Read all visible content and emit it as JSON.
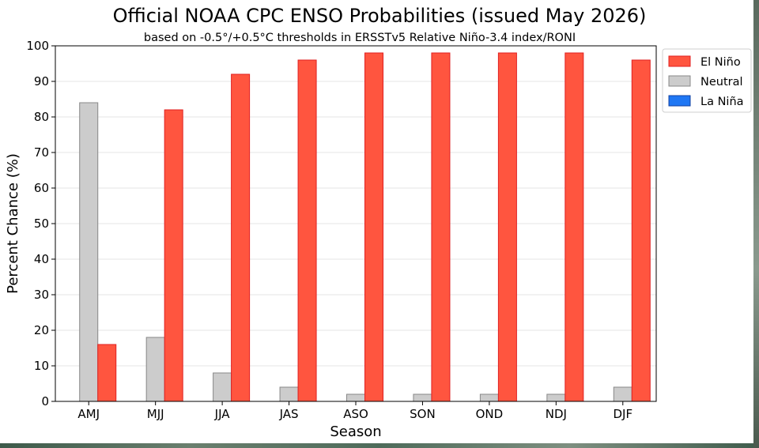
{
  "chart_data": {
    "type": "bar",
    "title": "Official NOAA CPC ENSO Probabilities (issued May 2026)",
    "subtitle": "based on -0.5°/+0.5°C thresholds in ERSSTv5 Relative Niño-3.4 index/RONI",
    "xlabel": "Season",
    "ylabel": "Percent Chance (%)",
    "ylim": [
      0,
      100
    ],
    "yticks": [
      0,
      10,
      20,
      30,
      40,
      50,
      60,
      70,
      80,
      90,
      100
    ],
    "grid": true,
    "legend_position": "outside-right",
    "categories": [
      "AMJ",
      "MJJ",
      "JJA",
      "JAS",
      "ASO",
      "SON",
      "OND",
      "NDJ",
      "DJF"
    ],
    "series": [
      {
        "name": "La Niña",
        "color": "#1f77f4",
        "edge": "#1040a0",
        "values": [
          0,
          0,
          0,
          0,
          0,
          0,
          0,
          0,
          0
        ]
      },
      {
        "name": "Neutral",
        "color": "#cccccc",
        "edge": "#888888",
        "values": [
          84,
          18,
          8,
          4,
          2,
          2,
          2,
          2,
          4
        ]
      },
      {
        "name": "El Niño",
        "color": "#ff553f",
        "edge": "#e02020",
        "values": [
          16,
          82,
          92,
          96,
          98,
          98,
          98,
          98,
          96
        ]
      }
    ],
    "legend_order": [
      "El Niño",
      "Neutral",
      "La Niña"
    ]
  }
}
